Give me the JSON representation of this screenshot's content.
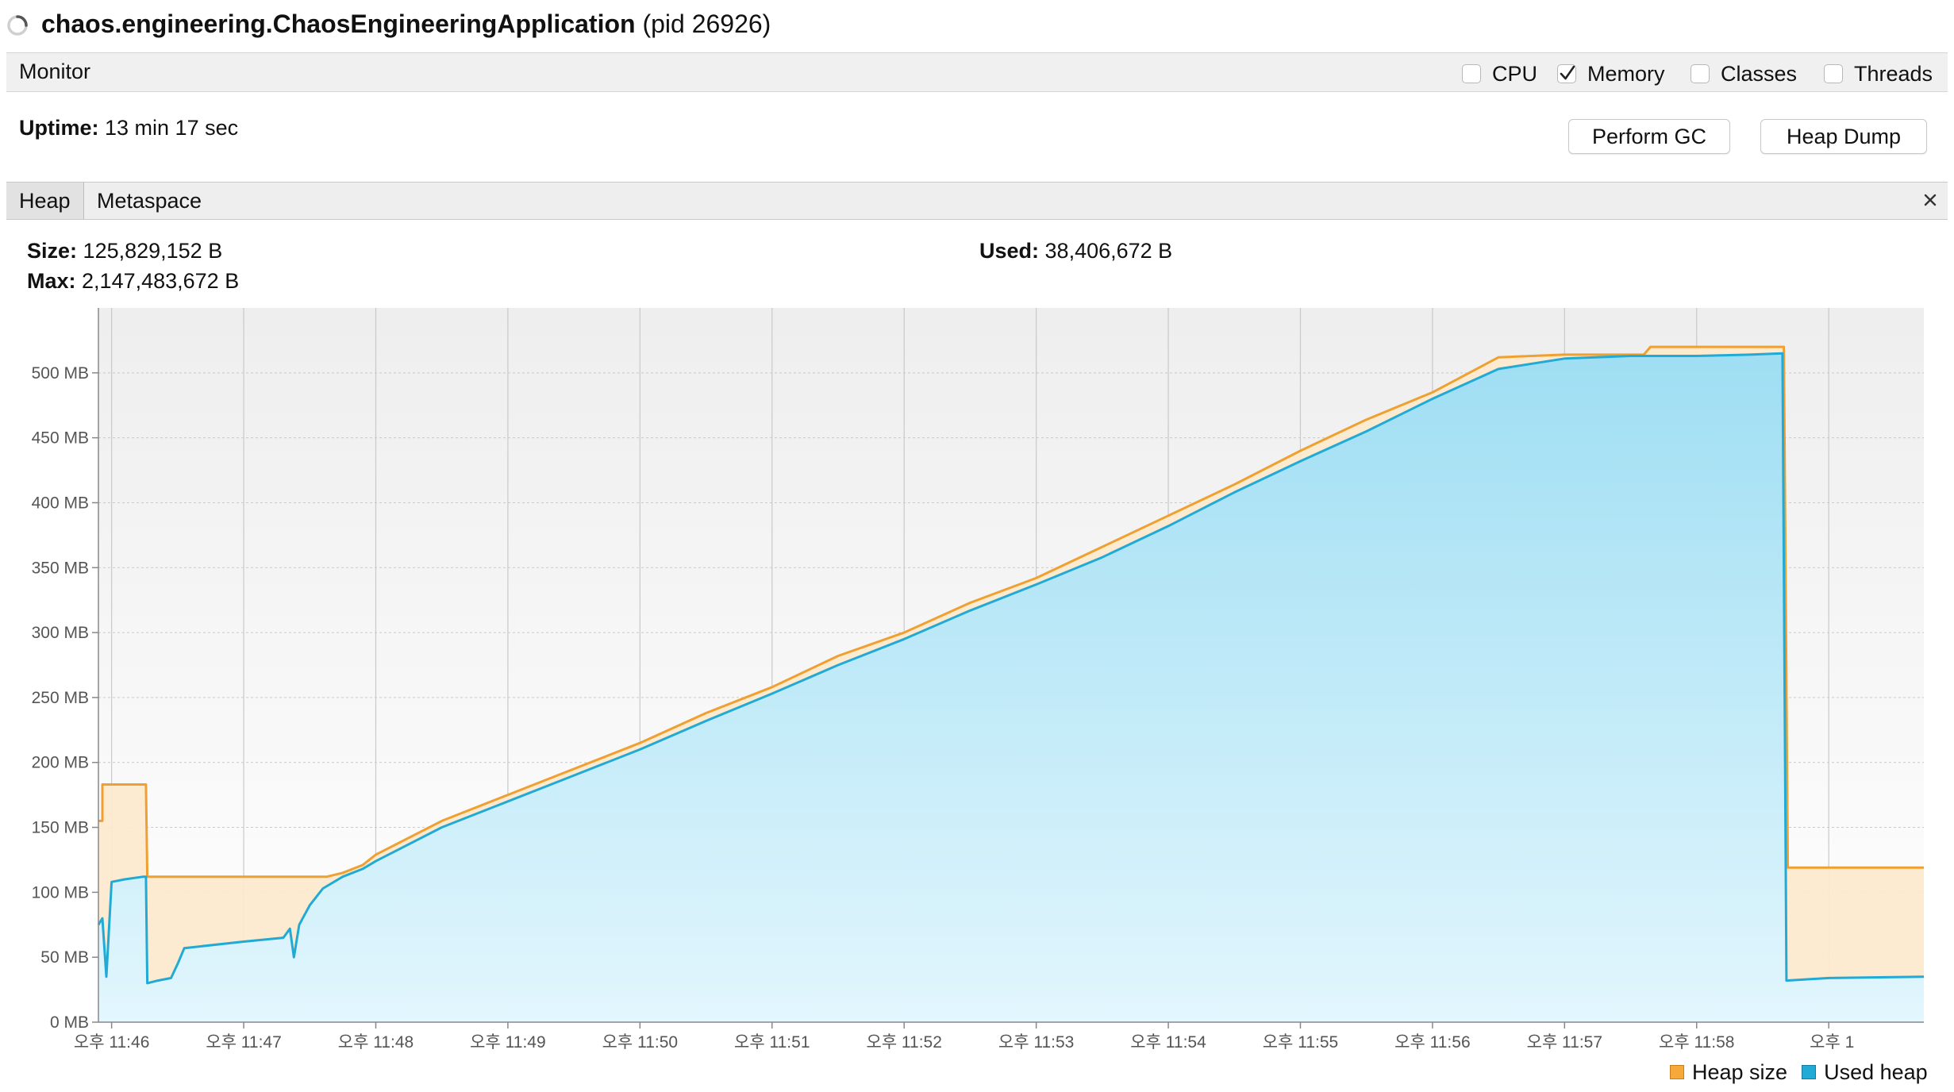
{
  "window": {
    "app_name": "chaos.engineering.ChaosEngineeringApplication",
    "pid_text": "(pid 26926)"
  },
  "monitor": {
    "label": "Monitor",
    "checkboxes": [
      {
        "label": "CPU",
        "checked": false
      },
      {
        "label": "Memory",
        "checked": true
      },
      {
        "label": "Classes",
        "checked": false
      },
      {
        "label": "Threads",
        "checked": false
      }
    ]
  },
  "uptime": {
    "label": "Uptime:",
    "value": "13 min 17 sec"
  },
  "buttons": {
    "perform_gc": "Perform GC",
    "heap_dump": "Heap Dump"
  },
  "tabs": [
    {
      "label": "Heap",
      "active": true
    },
    {
      "label": "Metaspace",
      "active": false
    }
  ],
  "heap_stats": {
    "size_label": "Size:",
    "size_value": "125,829,152 B",
    "max_label": "Max:",
    "max_value": "2,147,483,672 B",
    "used_label": "Used:",
    "used_value": "38,406,672 B"
  },
  "legend": {
    "heap_size": "Heap size",
    "used_heap": "Used heap"
  },
  "colors": {
    "heap_size": "#f0a030",
    "used_heap": "#22aad6"
  },
  "chart_data": {
    "type": "area",
    "y_unit": "MB",
    "ylim": [
      0,
      550
    ],
    "xlim_minutes": [
      45.9,
      59.72
    ],
    "yticks": [
      {
        "value": 0,
        "label": "0 MB"
      },
      {
        "value": 50,
        "label": "50 MB"
      },
      {
        "value": 100,
        "label": "100 MB"
      },
      {
        "value": 150,
        "label": "150 MB"
      },
      {
        "value": 200,
        "label": "200 MB"
      },
      {
        "value": 250,
        "label": "250 MB"
      },
      {
        "value": 300,
        "label": "300 MB"
      },
      {
        "value": 350,
        "label": "350 MB"
      },
      {
        "value": 400,
        "label": "400 MB"
      },
      {
        "value": 450,
        "label": "450 MB"
      },
      {
        "value": 500,
        "label": "500 MB"
      }
    ],
    "xticks": [
      {
        "value": 46,
        "label": "오후 11:46"
      },
      {
        "value": 47,
        "label": "오후 11:47"
      },
      {
        "value": 48,
        "label": "오후 11:48"
      },
      {
        "value": 49,
        "label": "오후 11:49"
      },
      {
        "value": 50,
        "label": "오후 11:50"
      },
      {
        "value": 51,
        "label": "오후 11:51"
      },
      {
        "value": 52,
        "label": "오후 11:52"
      },
      {
        "value": 53,
        "label": "오후 11:53"
      },
      {
        "value": 54,
        "label": "오후 11:54"
      },
      {
        "value": 55,
        "label": "오후 11:55"
      },
      {
        "value": 56,
        "label": "오후 11:56"
      },
      {
        "value": 57,
        "label": "오후 11:57"
      },
      {
        "value": 58,
        "label": "오후 11:58"
      },
      {
        "value": 59,
        "label": "오후 1"
      }
    ],
    "series": [
      {
        "name": "Heap size",
        "x": [
          45.9,
          45.93,
          45.93,
          46.26,
          46.27,
          47.63,
          47.75,
          47.9,
          48.0,
          48.5,
          49.0,
          49.5,
          50.0,
          50.5,
          51.0,
          51.5,
          52.0,
          52.5,
          53.0,
          53.5,
          54.0,
          54.5,
          55.0,
          55.5,
          56.0,
          56.5,
          57.0,
          57.2,
          57.6,
          57.65,
          58.0,
          58.3,
          58.66,
          58.69,
          59.72
        ],
        "y": [
          155,
          155,
          183,
          183,
          112,
          112,
          115,
          121,
          129,
          155,
          175,
          195,
          215,
          238,
          258,
          282,
          300,
          323,
          342,
          366,
          390,
          414,
          440,
          464,
          485,
          512,
          514,
          514,
          514,
          520,
          520,
          520,
          520,
          119,
          119
        ]
      },
      {
        "name": "Used heap",
        "x": [
          45.9,
          45.93,
          45.96,
          46.0,
          46.1,
          46.24,
          46.26,
          46.27,
          46.35,
          46.45,
          46.5,
          46.55,
          47.0,
          47.3,
          47.35,
          47.38,
          47.42,
          47.5,
          47.6,
          47.75,
          47.9,
          48.0,
          48.5,
          49.0,
          49.5,
          50.0,
          50.5,
          51.0,
          51.5,
          52.0,
          52.5,
          53.0,
          53.5,
          54.0,
          54.5,
          55.0,
          55.5,
          56.0,
          56.5,
          57.0,
          57.5,
          58.0,
          58.4,
          58.65,
          58.68,
          59.0,
          59.72
        ],
        "y": [
          75,
          80,
          35,
          108,
          110,
          112,
          112,
          30,
          32,
          34,
          45,
          57,
          62,
          65,
          72,
          50,
          75,
          90,
          103,
          112,
          118,
          124,
          150,
          170,
          190,
          210,
          232,
          253,
          275,
          295,
          317,
          337,
          358,
          382,
          408,
          432,
          455,
          480,
          503,
          511,
          513,
          513,
          514,
          515,
          32,
          34,
          35
        ]
      }
    ]
  }
}
